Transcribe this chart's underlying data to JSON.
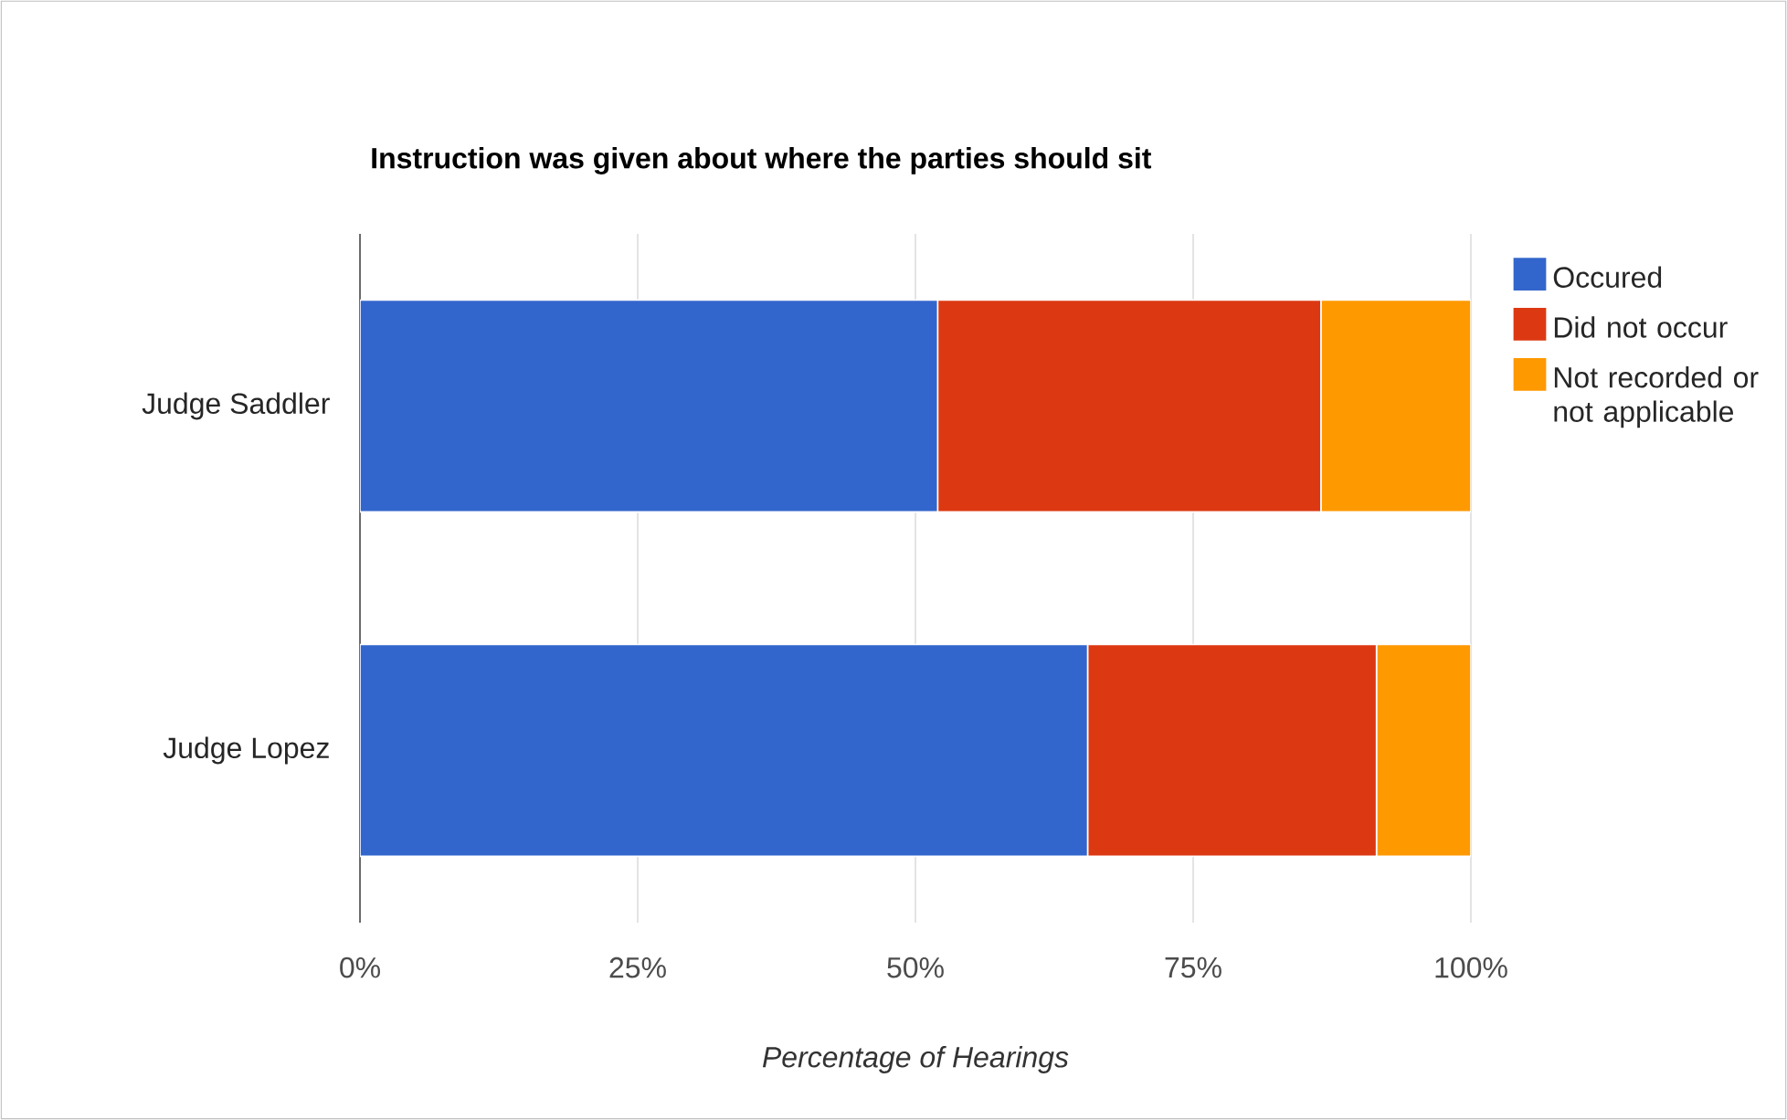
{
  "chart_data": {
    "type": "bar",
    "orientation": "horizontal",
    "stacked": true,
    "title": "Instruction was given about where the parties should sit",
    "xlabel": "Percentage of Hearings",
    "categories": [
      "Judge Saddler",
      "Judge Lopez"
    ],
    "series": [
      {
        "name": "Occured",
        "color": "#3366cc",
        "values": [
          52,
          65.5
        ]
      },
      {
        "name": "Did not occur",
        "color": "#dc3912",
        "values": [
          34.5,
          26
        ]
      },
      {
        "name": "Not recorded or not applicable",
        "color": "#ff9900",
        "values": [
          13.5,
          8.5
        ]
      }
    ],
    "xlim": [
      0,
      100
    ],
    "xticks": [
      {
        "value": 0,
        "label": "0%"
      },
      {
        "value": 25,
        "label": "25%"
      },
      {
        "value": 50,
        "label": "50%"
      },
      {
        "value": 75,
        "label": "75%"
      },
      {
        "value": 100,
        "label": "100%"
      }
    ],
    "grid": "x",
    "legend": "right"
  }
}
